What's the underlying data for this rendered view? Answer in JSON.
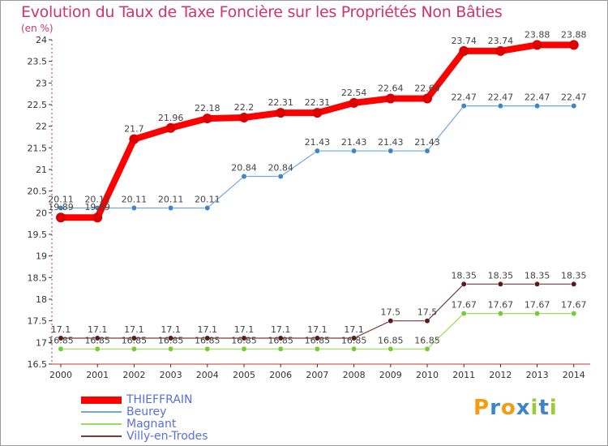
{
  "title": "Evolution du Taux de Taxe Foncière sur les Propriétés Non Bâties",
  "unit": "(en %)",
  "chart_data": {
    "type": "line",
    "title": "Evolution du Taux de Taxe Foncière sur les Propriétés Non Bâties",
    "ylabel": "(en %)",
    "xlabel": "",
    "ylim": [
      16.5,
      24
    ],
    "yticks": [
      16.5,
      17,
      17.5,
      18,
      18.5,
      19,
      19.5,
      20,
      20.5,
      21,
      21.5,
      22,
      22.5,
      23,
      23.5,
      24
    ],
    "categories": [
      "2000",
      "2001",
      "2002",
      "2003",
      "2004",
      "2005",
      "2006",
      "2007",
      "2008",
      "2009",
      "2010",
      "2011",
      "2012",
      "2013",
      "2014"
    ],
    "series": [
      {
        "name": "THIEFFRAIN",
        "color": "#ff0000",
        "marker": "#dd0000",
        "emphasis": true,
        "values": [
          19.89,
          19.89,
          21.7,
          21.96,
          22.18,
          22.2,
          22.31,
          22.31,
          22.54,
          22.64,
          22.64,
          23.74,
          23.74,
          23.88,
          23.88
        ],
        "labels": [
          "19.89",
          "19.89",
          "21.7",
          "21.96",
          "22.18",
          "22.2",
          "22.31",
          "22.31",
          "22.54",
          "22.64",
          "22.64",
          "23.74",
          "23.74",
          "23.88",
          "23.88"
        ]
      },
      {
        "name": "Beurey",
        "color": "#6fa8dc",
        "marker": "#3d85c6",
        "values": [
          20.11,
          20.11,
          20.11,
          20.11,
          20.11,
          20.84,
          20.84,
          21.43,
          21.43,
          21.43,
          21.43,
          22.47,
          22.47,
          22.47,
          22.47
        ],
        "labels": [
          "20.11",
          "20.11",
          "20.11",
          "20.11",
          "20.11",
          "20.84",
          "20.84",
          "21.43",
          "21.43",
          "21.43",
          "21.43",
          "22.47",
          "22.47",
          "22.47",
          "22.47"
        ]
      },
      {
        "name": "Magnant",
        "color": "#99dd55",
        "marker": "#77cc33",
        "values": [
          16.85,
          16.85,
          16.85,
          16.85,
          16.85,
          16.85,
          16.85,
          16.85,
          16.85,
          16.85,
          16.85,
          17.67,
          17.67,
          17.67,
          17.67
        ],
        "labels": [
          "16.85",
          "16.85",
          "16.85",
          "16.85",
          "16.85",
          "16.85",
          "16.85",
          "16.85",
          "16.85",
          "16.85",
          "16.85",
          "17.67",
          "17.67",
          "17.67",
          "17.67"
        ]
      },
      {
        "name": "Villy-en-Trodes",
        "color": "#7a3a3a",
        "marker": "#5a1a1a",
        "values": [
          17.1,
          17.1,
          17.1,
          17.1,
          17.1,
          17.1,
          17.1,
          17.1,
          17.1,
          17.5,
          17.5,
          18.35,
          18.35,
          18.35,
          18.35
        ],
        "labels": [
          "17.1",
          "17.1",
          "17.1",
          "17.1",
          "17.1",
          "17.1",
          "17.1",
          "17.1",
          "17.1",
          "17.5",
          "17.5",
          "18.35",
          "18.35",
          "18.35",
          "18.35"
        ]
      }
    ],
    "legend": "bottom-left"
  },
  "logo": {
    "letters": [
      "P",
      "r",
      "o",
      "x",
      "i",
      "t",
      "i"
    ],
    "colors": [
      "#f39c12",
      "#3d85c6",
      "#f39c12",
      "#3d85c6",
      "#99cc33",
      "#3d85c6",
      "#99cc33"
    ]
  }
}
